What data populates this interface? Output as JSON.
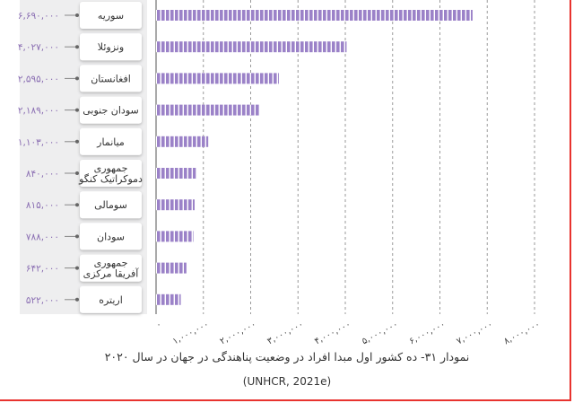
{
  "chart_data": {
    "type": "bar",
    "orientation": "horizontal",
    "categories": [
      "سوریه",
      "ونزوئلا",
      "افغانستان",
      "سودان جنوبی",
      "میانمار",
      "جمهوری دموکراتیک کنگو",
      "سومالی",
      "سودان",
      "جمهوری آفریقا مرکزی",
      "اریتره"
    ],
    "values": [
      6690000,
      4027000,
      2595000,
      2189000,
      1103000,
      840000,
      815000,
      788000,
      642000,
      522000
    ],
    "value_labels": [
      "۶,۶۹۰,۰۰۰",
      "۴,۰۲۷,۰۰۰",
      "۲,۵۹۵,۰۰۰",
      "۲,۱۸۹,۰۰۰",
      "۱,۱۰۳,۰۰۰",
      "۸۴۰,۰۰۰",
      "۸۱۵,۰۰۰",
      "۷۸۸,۰۰۰",
      "۶۴۲,۰۰۰",
      "۵۲۲,۰۰۰"
    ],
    "xlim": [
      0,
      8000000
    ],
    "xticks": [
      0,
      1000000,
      2000000,
      3000000,
      4000000,
      5000000,
      6000000,
      7000000,
      8000000
    ],
    "xtick_labels": [
      "۰",
      "۱,۰۰۰,۰۰۰",
      "۲,۰۰۰,۰۰۰",
      "۳,۰۰۰,۰۰۰",
      "۴,۰۰۰,۰۰۰",
      "۵,۰۰۰,۰۰۰",
      "۶,۰۰۰,۰۰۰",
      "۷,۰۰۰,۰۰۰",
      "۸,۰۰۰,۰۰۰"
    ],
    "grid": "vertical-dashed",
    "bar_color": "#9b82c8",
    "value_color": "#8b6fb3"
  },
  "caption": "نمودار ۳۱- ده کشور اول مبدا افراد در وضعیت پناهندگی در جهان در سال ۲۰۲۰",
  "source": "(UNHCR, 2021e)"
}
